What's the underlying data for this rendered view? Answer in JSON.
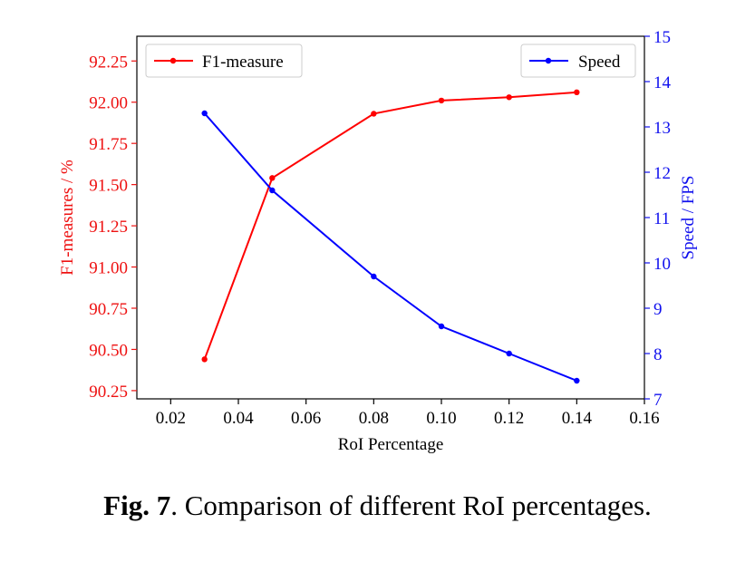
{
  "chart_data": {
    "type": "line",
    "x": [
      0.03,
      0.05,
      0.08,
      0.1,
      0.12,
      0.14
    ],
    "xlabel": "RoI Percentage",
    "xlim": [
      0.01,
      0.16
    ],
    "xticks": [
      "0.02",
      "0.04",
      "0.06",
      "0.08",
      "0.10",
      "0.12",
      "0.14",
      "0.16"
    ],
    "xtick_values": [
      0.02,
      0.04,
      0.06,
      0.08,
      0.1,
      0.12,
      0.14,
      0.16
    ],
    "y_left": {
      "label": "F1-measures / %",
      "lim": [
        90.2,
        92.4
      ],
      "ticks": [
        "90.25",
        "90.50",
        "90.75",
        "91.00",
        "91.25",
        "91.50",
        "91.75",
        "92.00",
        "92.25"
      ],
      "tick_values": [
        90.25,
        90.5,
        90.75,
        91.0,
        91.25,
        91.5,
        91.75,
        92.0,
        92.25
      ],
      "color": "#ee1111"
    },
    "y_right": {
      "label": "Speed / FPS",
      "lim": [
        7,
        15
      ],
      "ticks": [
        "7",
        "8",
        "9",
        "10",
        "11",
        "12",
        "13",
        "14",
        "15"
      ],
      "tick_values": [
        7,
        8,
        9,
        10,
        11,
        12,
        13,
        14,
        15
      ],
      "color": "#1111ee"
    },
    "series": [
      {
        "name": "F1-measure",
        "axis": "left",
        "color": "#ff0000",
        "values": [
          90.44,
          91.54,
          91.93,
          92.01,
          92.03,
          92.06
        ]
      },
      {
        "name": "Speed",
        "axis": "right",
        "color": "#0000ff",
        "values": [
          13.3,
          11.6,
          9.7,
          8.6,
          8.0,
          7.4
        ]
      }
    ],
    "legend": [
      {
        "label": "F1-measure",
        "placement": "upper-left"
      },
      {
        "label": "Speed",
        "placement": "upper-right"
      }
    ],
    "grid": false
  },
  "caption": {
    "label": "Fig. 7",
    "text": ". Comparison of different RoI percentages."
  }
}
